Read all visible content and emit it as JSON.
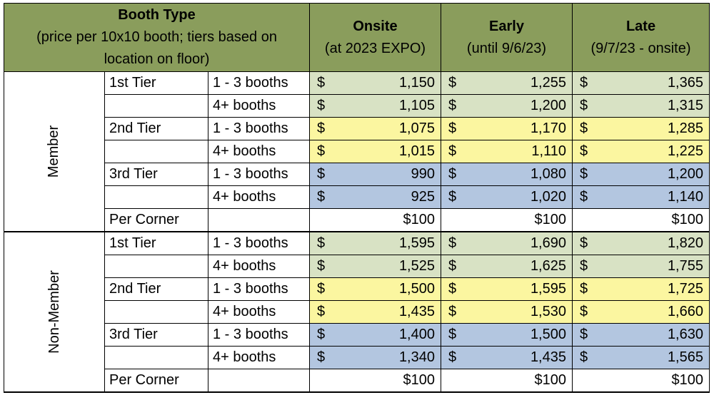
{
  "header": {
    "booth_type_title": "Booth Type",
    "booth_type_sub1": "(price per 10x10 booth; tiers based on",
    "booth_type_sub2": "location on floor)",
    "columns": [
      {
        "title": "Onsite",
        "sub": "(at 2023 EXPO)"
      },
      {
        "title": "Early",
        "sub": "(until 9/6/23)"
      },
      {
        "title": "Late",
        "sub": "(9/7/23 - onsite)"
      }
    ]
  },
  "currency_symbol": "$",
  "groups": [
    {
      "name": "Member",
      "rows": [
        {
          "tier": "1st Tier",
          "qty": "1 - 3 booths",
          "onsite": "1,150",
          "early": "1,255",
          "late": "1,365"
        },
        {
          "tier": "",
          "qty": "4+ booths",
          "onsite": "1,105",
          "early": "1,200",
          "late": "1,315"
        },
        {
          "tier": "2nd Tier",
          "qty": "1 - 3 booths",
          "onsite": "1,075",
          "early": "1,170",
          "late": "1,285"
        },
        {
          "tier": "",
          "qty": "4+ booths",
          "onsite": "1,015",
          "early": "1,110",
          "late": "1,225"
        },
        {
          "tier": "3rd Tier",
          "qty": "1 - 3 booths",
          "onsite": "990",
          "early": "1,080",
          "late": "1,200"
        },
        {
          "tier": "",
          "qty": "4+ booths",
          "onsite": "925",
          "early": "1,020",
          "late": "1,140"
        }
      ],
      "corner": {
        "label": "Per Corner",
        "onsite": "$100",
        "early": "$100",
        "late": "$100"
      }
    },
    {
      "name": "Non-Member",
      "rows": [
        {
          "tier": "1st Tier",
          "qty": "1 - 3 booths",
          "onsite": "1,595",
          "early": "1,690",
          "late": "1,820"
        },
        {
          "tier": "",
          "qty": "4+ booths",
          "onsite": "1,525",
          "early": "1,625",
          "late": "1,755"
        },
        {
          "tier": "2nd Tier",
          "qty": "1 - 3 booths",
          "onsite": "1,500",
          "early": "1,595",
          "late": "1,725"
        },
        {
          "tier": "",
          "qty": "4+ booths",
          "onsite": "1,435",
          "early": "1,530",
          "late": "1,660"
        },
        {
          "tier": "3rd Tier",
          "qty": "1 - 3 booths",
          "onsite": "1,400",
          "early": "1,500",
          "late": "1,630"
        },
        {
          "tier": "",
          "qty": "4+ booths",
          "onsite": "1,340",
          "early": "1,435",
          "late": "1,565"
        }
      ],
      "corner": {
        "label": "Per Corner",
        "onsite": "$100",
        "early": "$100",
        "late": "$100"
      }
    }
  ],
  "colors": {
    "header_green": "#8a9d5c",
    "tier1_green": "#d8e2c4",
    "tier2_yellow": "#fbf6a0",
    "tier3_blue": "#b3c6e0"
  }
}
